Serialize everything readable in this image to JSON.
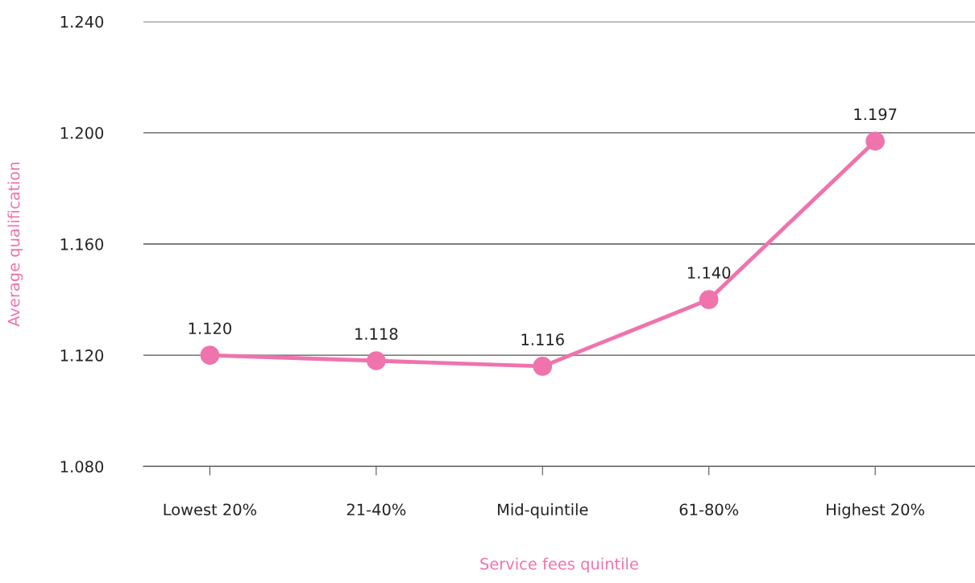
{
  "chart_data": {
    "type": "line",
    "xlabel": "Service fees quintile",
    "ylabel": "Average qualification",
    "categories": [
      "Lowest 20%",
      "21-40%",
      "Mid-quintile",
      "61-80%",
      "Highest 20%"
    ],
    "series": [
      {
        "color": "#ef73ad",
        "values": [
          1.12,
          1.118,
          1.116,
          1.14,
          1.197
        ],
        "value_labels": [
          "1.120",
          "1.118",
          "1.116",
          "1.140",
          "1.197"
        ]
      }
    ],
    "ylim": [
      1.08,
      1.24
    ],
    "yticks": [
      {
        "value": 1.08,
        "label": "1.080"
      },
      {
        "value": 1.12,
        "label": "1.120"
      },
      {
        "value": 1.16,
        "label": "1.160"
      },
      {
        "value": 1.2,
        "label": "1.200"
      },
      {
        "value": 1.24,
        "label": "1.240"
      }
    ],
    "grid": "y",
    "legend": false,
    "marker": "circle",
    "line_style": "solid"
  }
}
